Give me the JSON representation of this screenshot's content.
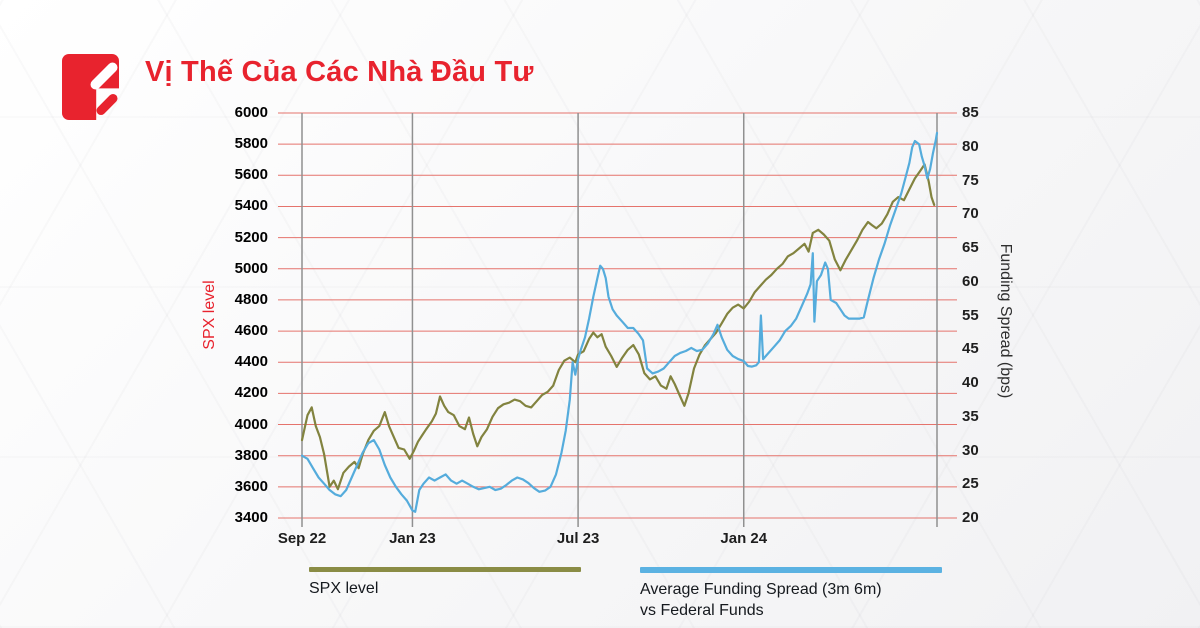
{
  "header": {
    "title": "Vị Thế Của Các Nhà Đầu Tư"
  },
  "colors": {
    "brand_red": "#e8232e",
    "grid_red": "#e5736c",
    "grid_gray": "#909090",
    "spx_line": "#82833f",
    "spread_line": "#55acdc",
    "legend_spx": "#8a8c45",
    "legend_spread": "#5bb2e2"
  },
  "legend": {
    "items": [
      {
        "color": "#8a8c45",
        "lines": [
          "SPX level"
        ]
      },
      {
        "color": "#5bb2e2",
        "lines": [
          "Average Funding Spread (3m 6m)",
          "vs Federal Funds"
        ]
      }
    ]
  },
  "chart_data": {
    "type": "line",
    "title": "Vị Thế Của Các Nhà Đầu Tư",
    "x_axis": {
      "tick_labels": [
        "Sep 22",
        "Jan 23",
        "Jul 23",
        "Jan 24"
      ],
      "tick_positions_months": [
        0,
        4,
        10,
        16
      ],
      "domain_months": [
        0,
        23
      ],
      "unlabeled_gridline_month": 23
    },
    "left_axis": {
      "label": "SPX level",
      "range": [
        3400,
        6000
      ],
      "ticks": [
        6000,
        5800,
        5600,
        5400,
        5200,
        5000,
        4800,
        4600,
        4400,
        4200,
        4000,
        3800,
        3600,
        3400
      ]
    },
    "right_axis": {
      "label": "Funding Spread (bps)",
      "range": [
        20,
        85
      ],
      "tick_labels": [
        85,
        80,
        75,
        70,
        65,
        60,
        55,
        45,
        40,
        35,
        30,
        25,
        20
      ]
    },
    "series": [
      {
        "name": "SPX level",
        "axis": "left",
        "color": "#82833f",
        "points": [
          [
            0,
            3900
          ],
          [
            0.2,
            4060
          ],
          [
            0.35,
            4110
          ],
          [
            0.5,
            3990
          ],
          [
            0.65,
            3920
          ],
          [
            0.8,
            3810
          ],
          [
            1.0,
            3600
          ],
          [
            1.15,
            3640
          ],
          [
            1.3,
            3585
          ],
          [
            1.5,
            3690
          ],
          [
            1.7,
            3730
          ],
          [
            1.9,
            3760
          ],
          [
            2.05,
            3720
          ],
          [
            2.2,
            3810
          ],
          [
            2.4,
            3900
          ],
          [
            2.6,
            3960
          ],
          [
            2.8,
            3990
          ],
          [
            3.0,
            4080
          ],
          [
            3.15,
            3990
          ],
          [
            3.3,
            3930
          ],
          [
            3.5,
            3850
          ],
          [
            3.7,
            3840
          ],
          [
            3.9,
            3780
          ],
          [
            4.05,
            3830
          ],
          [
            4.2,
            3890
          ],
          [
            4.35,
            3930
          ],
          [
            4.5,
            3970
          ],
          [
            4.7,
            4020
          ],
          [
            4.85,
            4070
          ],
          [
            5.0,
            4180
          ],
          [
            5.15,
            4120
          ],
          [
            5.3,
            4080
          ],
          [
            5.5,
            4060
          ],
          [
            5.7,
            3990
          ],
          [
            5.9,
            3970
          ],
          [
            6.05,
            4045
          ],
          [
            6.2,
            3940
          ],
          [
            6.35,
            3860
          ],
          [
            6.5,
            3920
          ],
          [
            6.7,
            3970
          ],
          [
            6.9,
            4050
          ],
          [
            7.1,
            4105
          ],
          [
            7.3,
            4130
          ],
          [
            7.5,
            4140
          ],
          [
            7.7,
            4160
          ],
          [
            7.9,
            4150
          ],
          [
            8.1,
            4120
          ],
          [
            8.3,
            4110
          ],
          [
            8.5,
            4150
          ],
          [
            8.7,
            4190
          ],
          [
            8.9,
            4210
          ],
          [
            9.1,
            4250
          ],
          [
            9.3,
            4350
          ],
          [
            9.5,
            4410
          ],
          [
            9.7,
            4430
          ],
          [
            9.9,
            4400
          ],
          [
            10.0,
            4450
          ],
          [
            10.2,
            4470
          ],
          [
            10.4,
            4550
          ],
          [
            10.55,
            4590
          ],
          [
            10.7,
            4560
          ],
          [
            10.85,
            4580
          ],
          [
            11.0,
            4500
          ],
          [
            11.2,
            4440
          ],
          [
            11.4,
            4370
          ],
          [
            11.6,
            4430
          ],
          [
            11.8,
            4480
          ],
          [
            12.0,
            4510
          ],
          [
            12.2,
            4450
          ],
          [
            12.4,
            4330
          ],
          [
            12.6,
            4290
          ],
          [
            12.8,
            4310
          ],
          [
            13.0,
            4250
          ],
          [
            13.2,
            4230
          ],
          [
            13.35,
            4310
          ],
          [
            13.5,
            4260
          ],
          [
            13.7,
            4180
          ],
          [
            13.85,
            4120
          ],
          [
            14.0,
            4200
          ],
          [
            14.2,
            4360
          ],
          [
            14.4,
            4450
          ],
          [
            14.6,
            4510
          ],
          [
            14.8,
            4550
          ],
          [
            15.0,
            4590
          ],
          [
            15.2,
            4650
          ],
          [
            15.4,
            4710
          ],
          [
            15.6,
            4750
          ],
          [
            15.8,
            4770
          ],
          [
            16.0,
            4745
          ],
          [
            16.2,
            4790
          ],
          [
            16.4,
            4850
          ],
          [
            16.6,
            4890
          ],
          [
            16.8,
            4930
          ],
          [
            17.0,
            4960
          ],
          [
            17.2,
            5000
          ],
          [
            17.4,
            5030
          ],
          [
            17.6,
            5080
          ],
          [
            17.8,
            5100
          ],
          [
            18.0,
            5130
          ],
          [
            18.2,
            5160
          ],
          [
            18.35,
            5110
          ],
          [
            18.5,
            5230
          ],
          [
            18.7,
            5250
          ],
          [
            18.9,
            5220
          ],
          [
            19.1,
            5180
          ],
          [
            19.3,
            5060
          ],
          [
            19.5,
            4990
          ],
          [
            19.7,
            5060
          ],
          [
            19.9,
            5120
          ],
          [
            20.1,
            5180
          ],
          [
            20.3,
            5250
          ],
          [
            20.5,
            5300
          ],
          [
            20.65,
            5280
          ],
          [
            20.8,
            5260
          ],
          [
            21.0,
            5290
          ],
          [
            21.2,
            5350
          ],
          [
            21.4,
            5430
          ],
          [
            21.6,
            5460
          ],
          [
            21.8,
            5440
          ],
          [
            22.0,
            5510
          ],
          [
            22.2,
            5580
          ],
          [
            22.4,
            5630
          ],
          [
            22.55,
            5670
          ],
          [
            22.7,
            5560
          ],
          [
            22.8,
            5460
          ],
          [
            22.9,
            5410
          ]
        ]
      },
      {
        "name": "Average Funding Spread (3m 6m) vs Federal Funds",
        "axis": "right",
        "color": "#55acdc",
        "points": [
          [
            0,
            30
          ],
          [
            0.2,
            29.5
          ],
          [
            0.4,
            28
          ],
          [
            0.6,
            26.5
          ],
          [
            0.8,
            25.5
          ],
          [
            1.0,
            24.5
          ],
          [
            1.2,
            23.8
          ],
          [
            1.4,
            23.5
          ],
          [
            1.6,
            24.5
          ],
          [
            1.8,
            26.5
          ],
          [
            2.0,
            28.5
          ],
          [
            2.2,
            30.5
          ],
          [
            2.4,
            32
          ],
          [
            2.6,
            32.5
          ],
          [
            2.8,
            31
          ],
          [
            3.0,
            28.5
          ],
          [
            3.2,
            26.5
          ],
          [
            3.4,
            25
          ],
          [
            3.6,
            23.8
          ],
          [
            3.8,
            22.8
          ],
          [
            4.0,
            21.2
          ],
          [
            4.1,
            21
          ],
          [
            4.25,
            24.5
          ],
          [
            4.4,
            25.5
          ],
          [
            4.6,
            26.5
          ],
          [
            4.8,
            26
          ],
          [
            5.0,
            26.5
          ],
          [
            5.2,
            27
          ],
          [
            5.4,
            26
          ],
          [
            5.6,
            25.5
          ],
          [
            5.8,
            26
          ],
          [
            6.0,
            25.5
          ],
          [
            6.2,
            25
          ],
          [
            6.4,
            24.6
          ],
          [
            6.6,
            24.8
          ],
          [
            6.8,
            25
          ],
          [
            7.0,
            24.5
          ],
          [
            7.2,
            24.7
          ],
          [
            7.4,
            25.3
          ],
          [
            7.6,
            26
          ],
          [
            7.8,
            26.5
          ],
          [
            8.0,
            26.2
          ],
          [
            8.2,
            25.6
          ],
          [
            8.4,
            24.8
          ],
          [
            8.6,
            24.2
          ],
          [
            8.8,
            24.4
          ],
          [
            9.0,
            25
          ],
          [
            9.2,
            27
          ],
          [
            9.4,
            30.5
          ],
          [
            9.55,
            34
          ],
          [
            9.7,
            39
          ],
          [
            9.8,
            45
          ],
          [
            9.9,
            43
          ],
          [
            10.0,
            45.5
          ],
          [
            10.1,
            47
          ],
          [
            10.25,
            49
          ],
          [
            10.4,
            52
          ],
          [
            10.55,
            55.5
          ],
          [
            10.7,
            58.5
          ],
          [
            10.8,
            60.5
          ],
          [
            10.9,
            60
          ],
          [
            11.0,
            58.5
          ],
          [
            11.1,
            55.5
          ],
          [
            11.25,
            53.5
          ],
          [
            11.4,
            52.5
          ],
          [
            11.6,
            51.5
          ],
          [
            11.8,
            50.5
          ],
          [
            12.0,
            50.5
          ],
          [
            12.2,
            49.5
          ],
          [
            12.35,
            48.5
          ],
          [
            12.5,
            44
          ],
          [
            12.7,
            43.2
          ],
          [
            12.9,
            43.5
          ],
          [
            13.1,
            44
          ],
          [
            13.3,
            45
          ],
          [
            13.5,
            46
          ],
          [
            13.7,
            46.5
          ],
          [
            13.9,
            46.8
          ],
          [
            14.1,
            47.3
          ],
          [
            14.3,
            46.8
          ],
          [
            14.5,
            47
          ],
          [
            14.7,
            48
          ],
          [
            14.9,
            49.5
          ],
          [
            15.05,
            51
          ],
          [
            15.2,
            49
          ],
          [
            15.4,
            47
          ],
          [
            15.6,
            46
          ],
          [
            15.8,
            45.5
          ],
          [
            16.0,
            45.2
          ],
          [
            16.15,
            44.4
          ],
          [
            16.3,
            44.3
          ],
          [
            16.45,
            44.5
          ],
          [
            16.55,
            45
          ],
          [
            16.62,
            52.5
          ],
          [
            16.7,
            45.5
          ],
          [
            16.9,
            46.5
          ],
          [
            17.1,
            47.5
          ],
          [
            17.3,
            48.5
          ],
          [
            17.5,
            50
          ],
          [
            17.7,
            50.8
          ],
          [
            17.9,
            52
          ],
          [
            18.1,
            54
          ],
          [
            18.3,
            56
          ],
          [
            18.42,
            57.5
          ],
          [
            18.5,
            62.5
          ],
          [
            18.56,
            51.5
          ],
          [
            18.65,
            58
          ],
          [
            18.8,
            59
          ],
          [
            18.95,
            61
          ],
          [
            19.05,
            60
          ],
          [
            19.15,
            55
          ],
          [
            19.35,
            54.5
          ],
          [
            19.5,
            53.5
          ],
          [
            19.65,
            52.5
          ],
          [
            19.8,
            52
          ],
          [
            20.0,
            52
          ],
          [
            20.2,
            52
          ],
          [
            20.35,
            52.2
          ],
          [
            20.5,
            55
          ],
          [
            20.7,
            58.5
          ],
          [
            20.9,
            61.5
          ],
          [
            21.1,
            64
          ],
          [
            21.3,
            67
          ],
          [
            21.5,
            69.5
          ],
          [
            21.7,
            72
          ],
          [
            21.85,
            74.5
          ],
          [
            22.0,
            77
          ],
          [
            22.1,
            79.5
          ],
          [
            22.2,
            80.5
          ],
          [
            22.35,
            80
          ],
          [
            22.45,
            78
          ],
          [
            22.55,
            76.5
          ],
          [
            22.65,
            74.5
          ],
          [
            22.75,
            76
          ],
          [
            22.85,
            78.5
          ],
          [
            22.95,
            80.5
          ],
          [
            23.0,
            81.8
          ]
        ]
      }
    ]
  }
}
